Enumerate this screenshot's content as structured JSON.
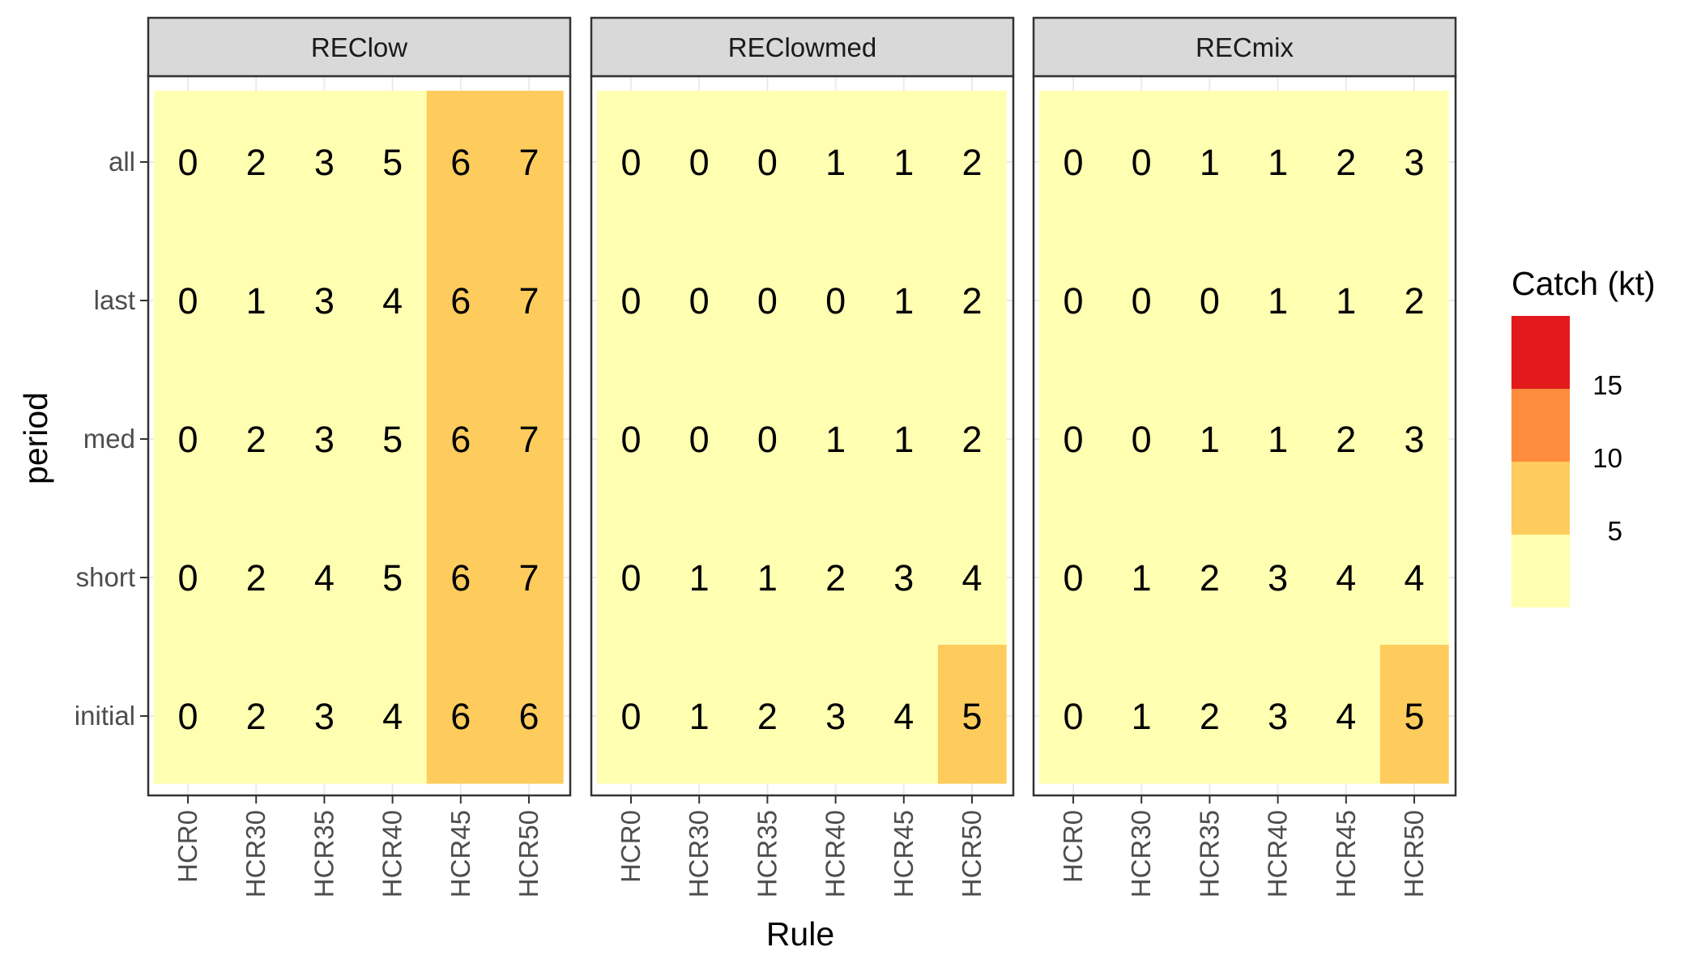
{
  "chart_data": {
    "type": "heatmap",
    "xlabel": "Rule",
    "ylabel": "period",
    "x_categories": [
      "HCR0",
      "HCR30",
      "HCR35",
      "HCR40",
      "HCR45",
      "HCR50"
    ],
    "y_categories": [
      "all",
      "last",
      "med",
      "short",
      "initial"
    ],
    "panels": [
      {
        "name": "REClow",
        "values": [
          [
            0,
            2,
            3,
            5,
            6,
            7
          ],
          [
            0,
            1,
            3,
            4,
            6,
            7
          ],
          [
            0,
            2,
            3,
            5,
            6,
            7
          ],
          [
            0,
            2,
            4,
            5,
            6,
            7
          ],
          [
            0,
            2,
            3,
            4,
            6,
            6
          ]
        ],
        "bins": [
          [
            0,
            0,
            0,
            0,
            1,
            1
          ],
          [
            0,
            0,
            0,
            0,
            1,
            1
          ],
          [
            0,
            0,
            0,
            0,
            1,
            1
          ],
          [
            0,
            0,
            0,
            0,
            1,
            1
          ],
          [
            0,
            0,
            0,
            0,
            1,
            1
          ]
        ]
      },
      {
        "name": "REClowmed",
        "values": [
          [
            0,
            0,
            0,
            1,
            1,
            2
          ],
          [
            0,
            0,
            0,
            0,
            1,
            2
          ],
          [
            0,
            0,
            0,
            1,
            1,
            2
          ],
          [
            0,
            1,
            1,
            2,
            3,
            4
          ],
          [
            0,
            1,
            2,
            3,
            4,
            5
          ]
        ],
        "bins": [
          [
            0,
            0,
            0,
            0,
            0,
            0
          ],
          [
            0,
            0,
            0,
            0,
            0,
            0
          ],
          [
            0,
            0,
            0,
            0,
            0,
            0
          ],
          [
            0,
            0,
            0,
            0,
            0,
            0
          ],
          [
            0,
            0,
            0,
            0,
            0,
            1
          ]
        ]
      },
      {
        "name": "RECmix",
        "values": [
          [
            0,
            0,
            1,
            1,
            2,
            3
          ],
          [
            0,
            0,
            0,
            1,
            1,
            2
          ],
          [
            0,
            0,
            1,
            1,
            2,
            3
          ],
          [
            0,
            1,
            2,
            3,
            4,
            4
          ],
          [
            0,
            1,
            2,
            3,
            4,
            5
          ]
        ],
        "bins": [
          [
            0,
            0,
            0,
            0,
            0,
            0
          ],
          [
            0,
            0,
            0,
            0,
            0,
            0
          ],
          [
            0,
            0,
            0,
            0,
            0,
            0
          ],
          [
            0,
            0,
            0,
            0,
            0,
            0
          ],
          [
            0,
            0,
            0,
            0,
            0,
            1
          ]
        ]
      }
    ],
    "legend": {
      "title": "Catch (kt)",
      "placement": "right",
      "labels": [
        "15",
        "10",
        "5"
      ],
      "colors_top_to_bottom": [
        "#E31A1C",
        "#FD8D3C",
        "#FECC5C",
        "#FFFFB2"
      ]
    },
    "bin_colors": [
      "#FFFFB2",
      "#FECC5C",
      "#FD8D3C",
      "#E31A1C"
    ],
    "grid": true
  },
  "colors": {
    "strip_bg": "#D9D9D9",
    "border": "#333333",
    "grid": "#EBEBEB",
    "tick": "#333333"
  }
}
